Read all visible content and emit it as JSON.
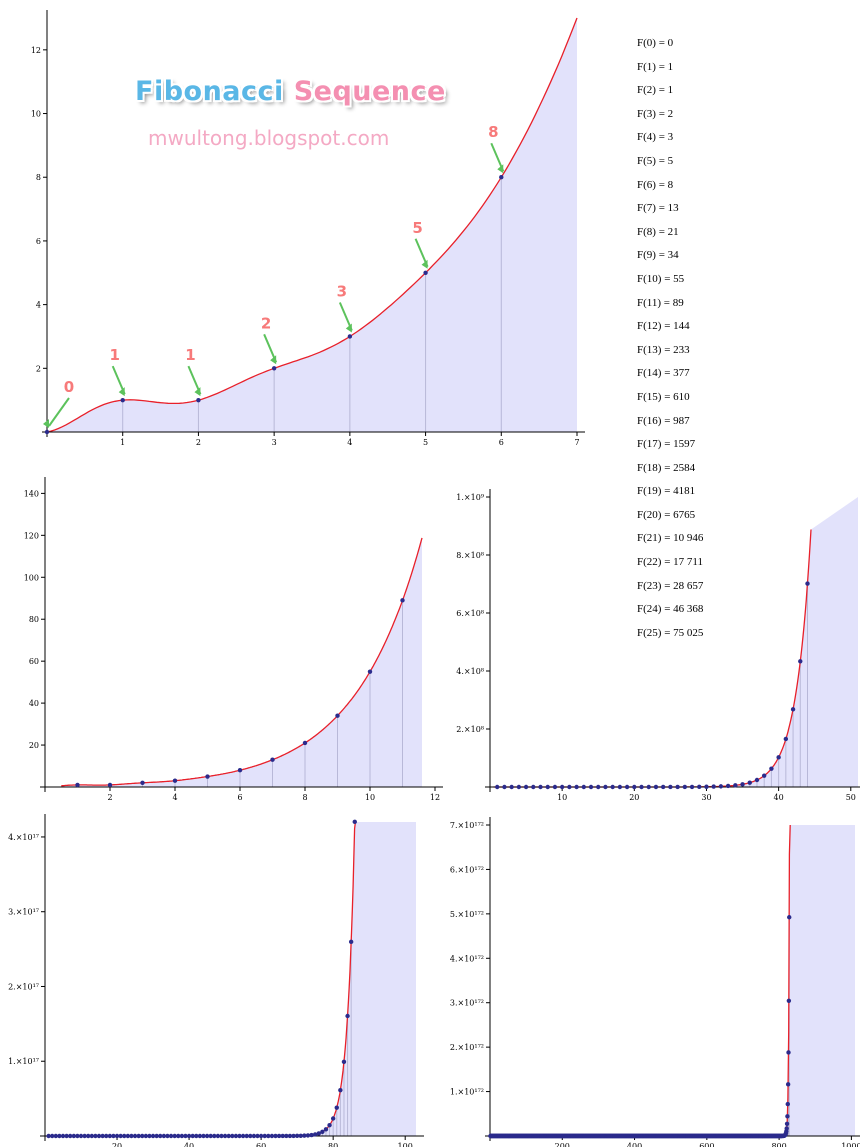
{
  "banner": {
    "title_word1": "Fibonacci",
    "title_word2": "Sequence",
    "subtitle": "mwultong.blogspot.com"
  },
  "fib_list": [
    "F(0) =  0",
    "F(1) =  1",
    "F(2) =  1",
    "F(3) =  2",
    "F(4) =  3",
    "F(5) =  5",
    "F(6) =  8",
    "F(7) =  13",
    "F(8) =  21",
    "F(9) =  34",
    "F(10) =  55",
    "F(11) =  89",
    "F(12) =  144",
    "F(13) =  233",
    "F(14) =  377",
    "F(15) =  610",
    "F(16) =  987",
    "F(17) =  1597",
    "F(18) =  2584",
    "F(19) =  4181",
    "F(20) =  6765",
    "F(21) =  10 946",
    "F(22) =  17 711",
    "F(23) =  28 657",
    "F(24) =  46 368",
    "F(25) =  75 025"
  ],
  "colors": {
    "curve": "#e8202a",
    "fill": "#e2e2fb",
    "point": "#2b2b8c",
    "stem": "#b8b8d8",
    "arrow": "#5cc25c",
    "arrow_label": "#f77a7a"
  },
  "chart_data": [
    {
      "type": "area",
      "x": [
        0,
        1,
        2,
        3,
        4,
        5,
        6
      ],
      "y": [
        0,
        1,
        1,
        2,
        3,
        5,
        8
      ],
      "xlim": [
        0,
        7
      ],
      "ylim": [
        0,
        13
      ],
      "xticks": [
        "1",
        "2",
        "3",
        "4",
        "5",
        "6",
        "7"
      ],
      "yticks": [
        "2",
        "4",
        "6",
        "8",
        "10",
        "12"
      ],
      "annotations": [
        "0",
        "1",
        "1",
        "2",
        "3",
        "5",
        "8"
      ]
    },
    {
      "type": "area",
      "x": [
        1,
        2,
        3,
        4,
        5,
        6,
        7,
        8,
        9,
        10,
        11
      ],
      "y": [
        1,
        1,
        2,
        3,
        5,
        8,
        13,
        21,
        34,
        55,
        89
      ],
      "xlim": [
        0,
        12
      ],
      "ylim": [
        0,
        144
      ],
      "xticks": [
        "2",
        "4",
        "6",
        "8",
        "10",
        "12"
      ],
      "yticks": [
        "20",
        "40",
        "60",
        "80",
        "100",
        "120",
        "140"
      ]
    },
    {
      "type": "area",
      "x_range": [
        1,
        44
      ],
      "xlim": [
        0,
        51
      ],
      "ylim": [
        0,
        1000000000
      ],
      "xticks": [
        "10",
        "20",
        "30",
        "40",
        "50"
      ],
      "yticks": [
        "2.×10⁸",
        "4.×10⁸",
        "6.×10⁸",
        "8.×10⁸",
        "1.×10⁹"
      ]
    },
    {
      "type": "area",
      "x_range": [
        1,
        86
      ],
      "xlim": [
        0,
        103
      ],
      "ylim": [
        0,
        4.2e+17
      ],
      "xticks": [
        "20",
        "40",
        "60",
        "80",
        "100"
      ],
      "yticks": [
        "1.×10¹⁷",
        "2.×10¹⁷",
        "3.×10¹⁷",
        "4.×10¹⁷"
      ]
    },
    {
      "type": "area",
      "x_range": [
        1,
        830
      ],
      "xlim": [
        0,
        1010
      ],
      "ylim": [
        0,
        7e+172
      ],
      "xticks": [
        "200",
        "400",
        "600",
        "800",
        "1000"
      ],
      "yticks": [
        "1.×10¹⁷²",
        "2.×10¹⁷²",
        "3.×10¹⁷²",
        "4.×10¹⁷²",
        "5.×10¹⁷²",
        "6.×10¹⁷²",
        "7.×10¹⁷²"
      ]
    }
  ]
}
